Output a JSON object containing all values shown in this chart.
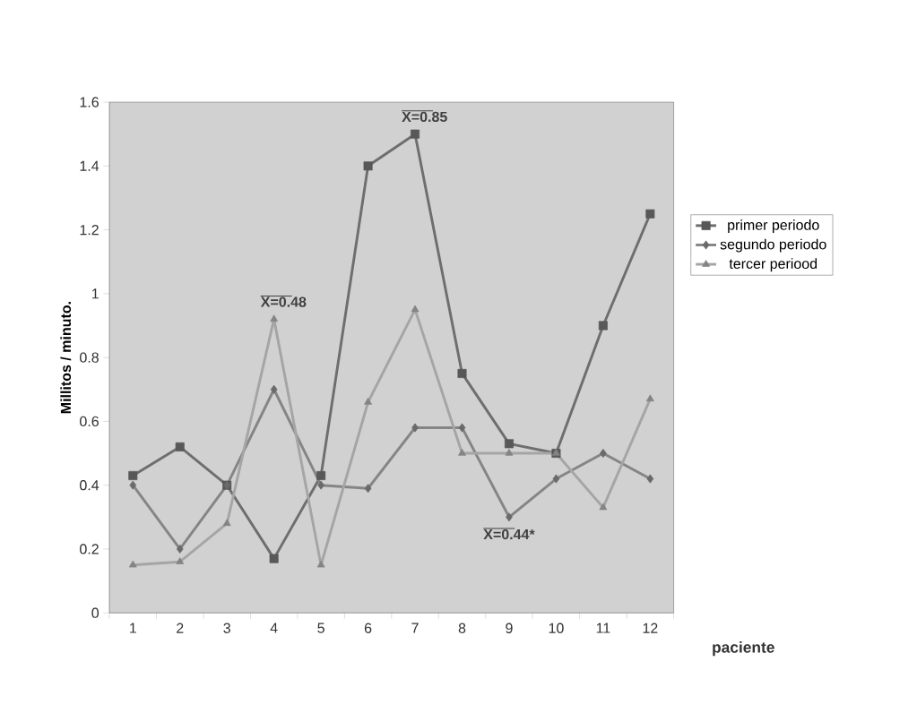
{
  "chart_data": {
    "type": "line",
    "ylabel": "Millitos / minuto.",
    "xlabel": "paciente",
    "categories": [
      "1",
      "2",
      "3",
      "4",
      "5",
      "6",
      "7",
      "8",
      "9",
      "10",
      "11",
      "12"
    ],
    "series": [
      {
        "name": "primer periodo",
        "color": "#6e6e6e",
        "marker": "square",
        "values": [
          0.43,
          0.52,
          0.4,
          0.17,
          0.43,
          1.4,
          1.5,
          0.75,
          0.53,
          0.5,
          0.9,
          1.25
        ]
      },
      {
        "name": "segundo periodo",
        "color": "#858585",
        "marker": "diamond",
        "values": [
          0.4,
          0.2,
          0.4,
          0.7,
          0.4,
          0.39,
          0.58,
          0.58,
          0.3,
          0.42,
          0.5,
          0.42
        ]
      },
      {
        "name": "tercer periood",
        "color": "#a5a5a5",
        "marker": "triangle",
        "values": [
          0.15,
          0.16,
          0.28,
          0.92,
          0.15,
          0.66,
          0.95,
          0.5,
          0.5,
          0.5,
          0.33,
          0.67
        ]
      }
    ],
    "annotations": [
      {
        "text": "X=0.48",
        "x": "4",
        "y": 0.92
      },
      {
        "text": "X=0.85",
        "x": "7",
        "y": 1.5
      },
      {
        "text": "X=0.44*",
        "x": "9",
        "y": 0.3
      }
    ],
    "ylim": [
      0,
      1.6
    ],
    "yticks": [
      0,
      0.2,
      0.4,
      0.6,
      0.8,
      1,
      1.2,
      1.4,
      1.6
    ],
    "grid": false,
    "legend": "right",
    "line_style": "solid"
  }
}
